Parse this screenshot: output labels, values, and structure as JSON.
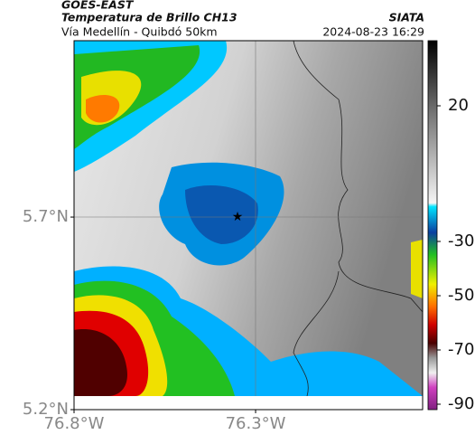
{
  "header": {
    "title": "GOES-EAST",
    "subtitle": "Temperatura de Brillo CH13",
    "description": "Vía Medellín - Quibdó 50km",
    "source": "SIATA",
    "datetime": "2024-08-23 16:29"
  },
  "axes": {
    "lon_lim": [
      -76.8,
      -75.84
    ],
    "lat_lim": [
      5.2,
      6.158
    ],
    "lon_ticks": [
      {
        "value": -76.8,
        "label": "76.8°W"
      },
      {
        "value": -76.3,
        "label": "76.3°W"
      }
    ],
    "lat_ticks": [
      {
        "value": 5.2,
        "label": "5.2°N"
      },
      {
        "value": 5.7,
        "label": "5.7°N"
      }
    ]
  },
  "colorbar": {
    "clim": [
      -92,
      44
    ],
    "ticks": [
      20,
      -30,
      -50,
      -70,
      -90
    ]
  }
}
